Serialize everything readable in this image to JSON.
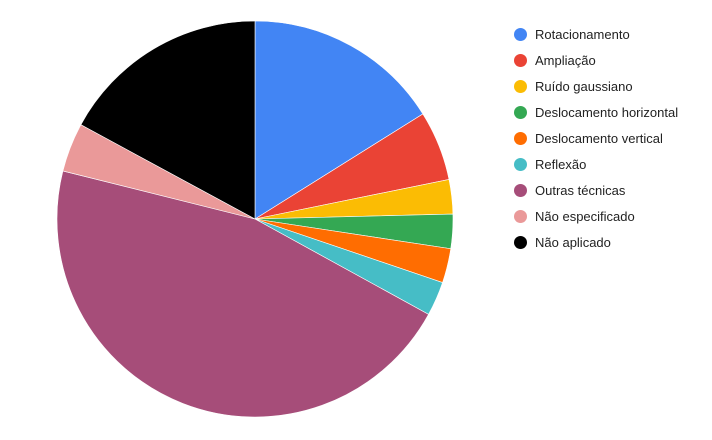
{
  "chart_data": {
    "type": "pie",
    "title": "",
    "start_angle": "top",
    "direction": "clockwise",
    "legend_position": "right",
    "slices": [
      {
        "label": "Rotacionamento",
        "value": 16.1,
        "color": "#4285f4"
      },
      {
        "label": "Ampliação",
        "value": 5.7,
        "color": "#ea4335"
      },
      {
        "label": "Ruído gaussiano",
        "value": 2.8,
        "color": "#fbbc04"
      },
      {
        "label": "Deslocamento horizontal",
        "value": 2.8,
        "color": "#34a853"
      },
      {
        "label": "Deslocamento vertical",
        "value": 2.8,
        "color": "#ff6d01"
      },
      {
        "label": "Reflexão",
        "value": 2.8,
        "color": "#46bdc6"
      },
      {
        "label": "Outras técnicas",
        "value": 45.9,
        "color": "#a64d79"
      },
      {
        "label": "Não especificado",
        "value": 4.0,
        "color": "#ea9999"
      },
      {
        "label": "Não aplicado",
        "value": 17.1,
        "color": "#000000"
      }
    ]
  }
}
